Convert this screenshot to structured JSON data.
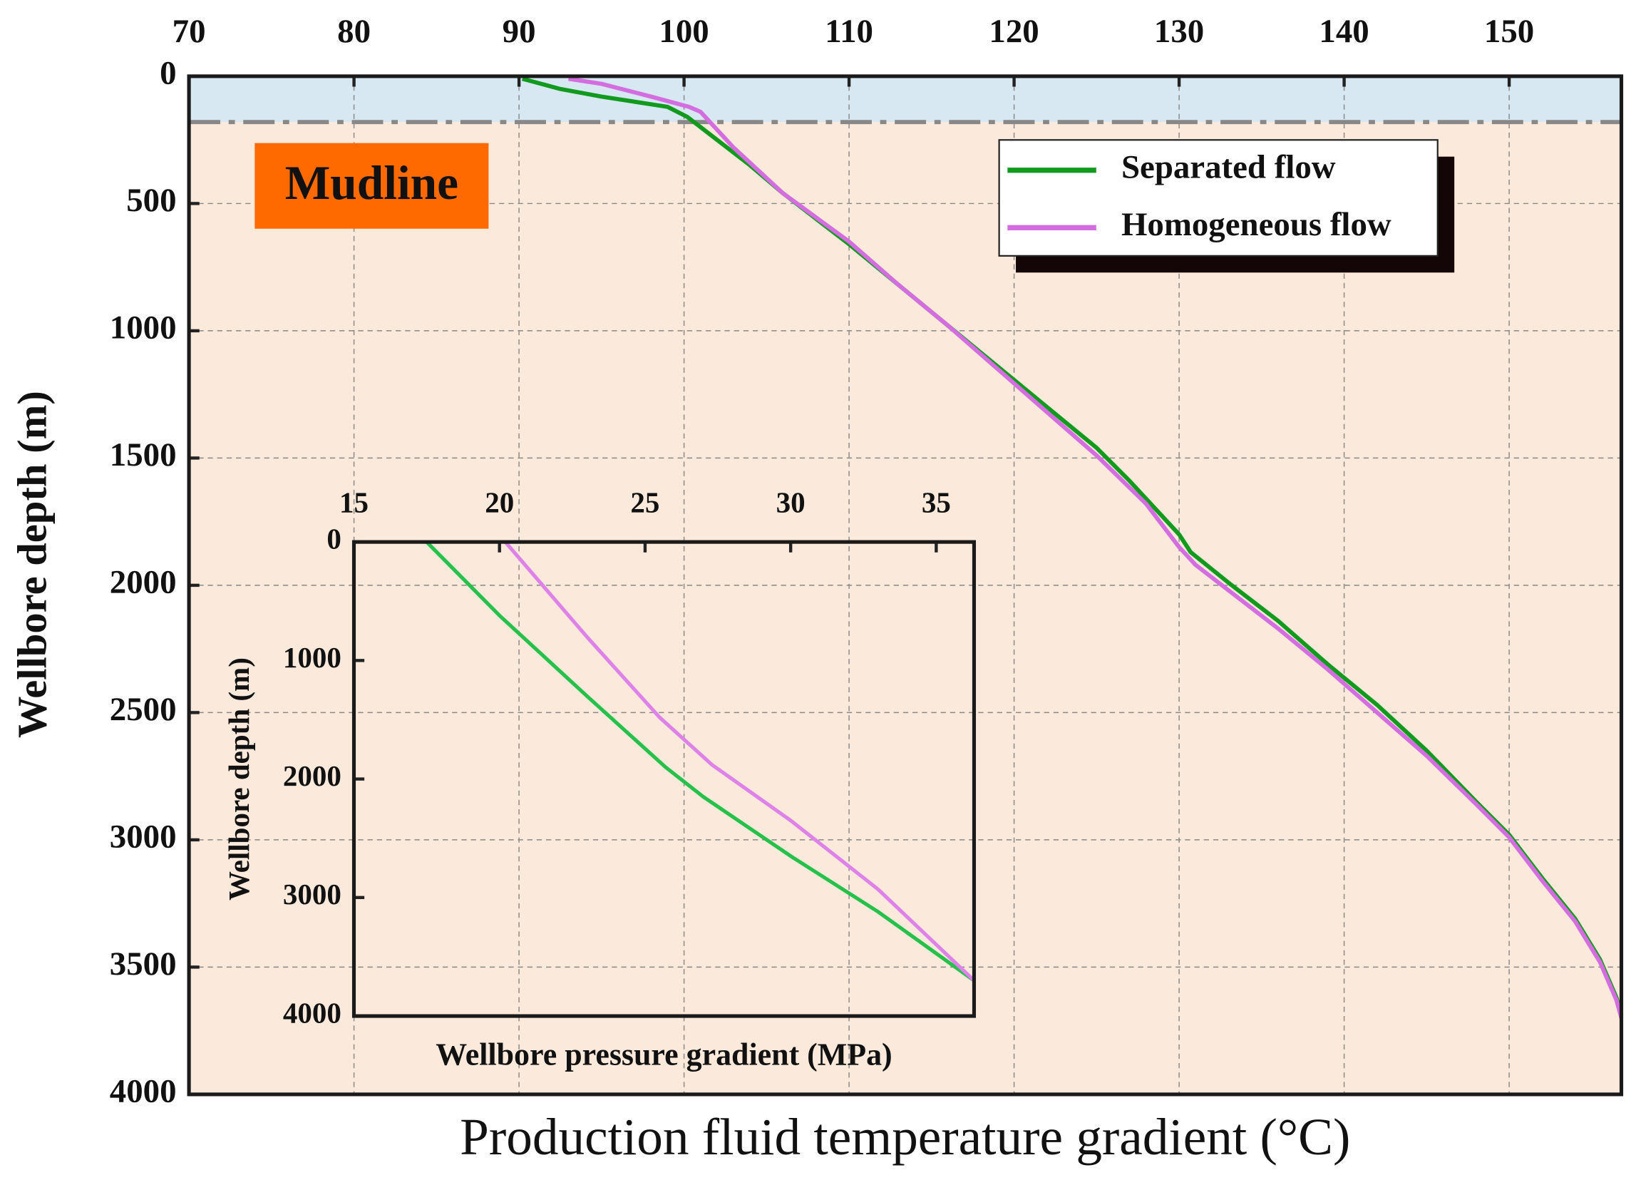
{
  "chart_data": [
    {
      "type": "line",
      "x_label": "Production fluid temperature gradient (°C)",
      "y_label": "Wellbore depth (m)",
      "xlim": [
        70,
        156.8
      ],
      "ylim": [
        0,
        4000
      ],
      "y_inverted": true,
      "xticks": [
        70,
        80,
        90,
        100,
        110,
        120,
        130,
        140,
        150
      ],
      "yticks": [
        0,
        500,
        1000,
        1500,
        2000,
        2500,
        3000,
        3500,
        4000
      ],
      "grid": true,
      "legend": "upper right",
      "annotation": "Mudline",
      "mudline_depth": 180,
      "series": [
        {
          "name": "Separated flow",
          "color": "#119a1e",
          "x": [
            90.2,
            92.5,
            95,
            99,
            100.2,
            102,
            104,
            106,
            108,
            110,
            113,
            116,
            119,
            122,
            125,
            127,
            130,
            130.7,
            133,
            136,
            139,
            142,
            145,
            148,
            150,
            152,
            154,
            155.5,
            156.5,
            156.8
          ],
          "values": [
            10,
            50,
            80,
            120,
            160,
            250,
            350,
            460,
            560,
            660,
            820,
            980,
            1140,
            1300,
            1460,
            1590,
            1800,
            1870,
            1990,
            2140,
            2310,
            2470,
            2650,
            2850,
            2980,
            3150,
            3310,
            3470,
            3620,
            3690
          ]
        },
        {
          "name": "Homogeneous flow",
          "color": "#d46ee0",
          "x": [
            93,
            95,
            98,
            100.3,
            101,
            103,
            106,
            110,
            113,
            116,
            119,
            122,
            125,
            128,
            130,
            131,
            133,
            136,
            139,
            142,
            145,
            148,
            150,
            152,
            154,
            155.5,
            156.5,
            156.8
          ],
          "values": [
            10,
            30,
            80,
            120,
            140,
            280,
            460,
            650,
            820,
            980,
            1150,
            1320,
            1490,
            1680,
            1850,
            1920,
            2020,
            2170,
            2330,
            2500,
            2670,
            2860,
            2990,
            3160,
            3320,
            3480,
            3630,
            3700
          ]
        }
      ]
    },
    {
      "type": "line",
      "x_label": "Wellbore pressure gradient (MPa)",
      "y_label": "Wellbore depth (m)",
      "xlim": [
        15,
        36.3
      ],
      "ylim": [
        0,
        4000
      ],
      "y_inverted": true,
      "xticks": [
        15,
        20,
        25,
        30,
        35
      ],
      "yticks": [
        0,
        1000,
        2000,
        3000,
        4000
      ],
      "grid": false,
      "series": [
        {
          "name": "Separated flow",
          "color": "#27c04a",
          "x": [
            17.5,
            20,
            23,
            25.7,
            27,
            30,
            33,
            36.3
          ],
          "values": [
            0,
            620,
            1300,
            1900,
            2150,
            2650,
            3120,
            3700
          ]
        },
        {
          "name": "Homogeneous flow",
          "color": "#de82ea",
          "x": [
            20.2,
            23,
            25.5,
            27.3,
            30,
            33,
            36.3
          ],
          "values": [
            0,
            800,
            1480,
            1880,
            2350,
            2930,
            3700
          ]
        }
      ]
    }
  ]
}
